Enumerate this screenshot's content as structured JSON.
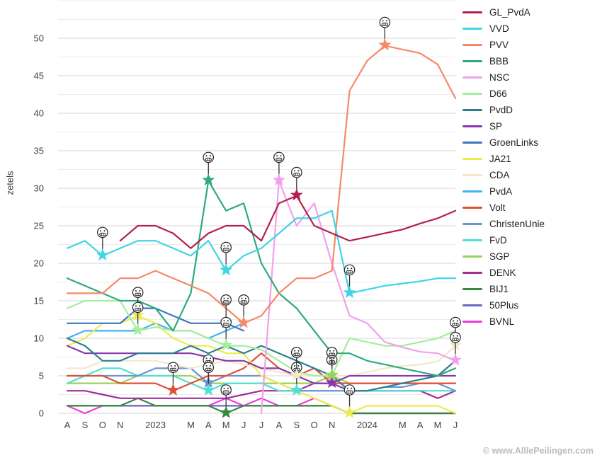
{
  "watermark": "© www.AlllePeilingen.com",
  "chart_data": {
    "type": "line",
    "title": "",
    "xlabel": "",
    "ylabel": "zetels",
    "ylim": [
      0,
      55
    ],
    "yticks": [
      0,
      5,
      10,
      15,
      20,
      25,
      30,
      35,
      40,
      45,
      50
    ],
    "grid": "horizontal major every 5 seats, minor every 2.5 seats",
    "legend_position": "right",
    "x_labels": [
      "A",
      "S",
      "O",
      "N",
      "",
      "2023",
      "",
      "M",
      "A",
      "M",
      "J",
      "J",
      "A",
      "S",
      "O",
      "N",
      "",
      "2024",
      "",
      "M",
      "A",
      "M",
      "J"
    ],
    "series": [
      {
        "name": "GL_PvdA",
        "color": "#b51e50",
        "values": [
          null,
          null,
          null,
          23,
          25,
          25,
          24,
          22,
          24,
          25,
          25,
          23,
          28,
          29,
          25,
          24,
          23,
          23.5,
          24,
          24.5,
          25.3,
          26,
          27
        ]
      },
      {
        "name": "VVD",
        "color": "#3fd5e5",
        "values": [
          22,
          23,
          21,
          22,
          23,
          23,
          22,
          21,
          23,
          19,
          21,
          22,
          24,
          26,
          26,
          27,
          16,
          16.5,
          17,
          17.3,
          17.6,
          18,
          18
        ]
      },
      {
        "name": "PVV",
        "color": "#f58a68",
        "values": [
          16,
          16,
          16,
          18,
          18,
          19,
          18,
          17,
          16,
          14,
          12,
          13,
          16,
          18,
          18,
          19,
          43,
          47,
          49,
          48.5,
          48,
          46.5,
          42
        ]
      },
      {
        "name": "BBB",
        "color": "#2eab78",
        "values": [
          18,
          17,
          16,
          15,
          15,
          14,
          11,
          16,
          31,
          27,
          28,
          20,
          16,
          14,
          11,
          8,
          8,
          7,
          6.5,
          6,
          5.5,
          5,
          6
        ]
      },
      {
        "name": "NSC",
        "color": "#f2a0ec",
        "values": [
          null,
          null,
          null,
          null,
          null,
          null,
          null,
          null,
          null,
          null,
          null,
          0,
          31,
          25,
          28,
          20,
          13,
          12,
          9.5,
          8.8,
          8.2,
          8,
          7
        ]
      },
      {
        "name": "D66",
        "color": "#a5ee9b",
        "values": [
          14,
          15,
          15,
          15,
          11,
          11.5,
          11,
          11,
          10,
          9,
          9,
          8.5,
          7,
          5.5,
          5,
          5,
          10,
          9.5,
          9,
          9,
          9.5,
          10,
          11
        ]
      },
      {
        "name": "PvdD",
        "color": "#2c7f90",
        "values": [
          10,
          9,
          7,
          7,
          8,
          8,
          8,
          9,
          8,
          9,
          8,
          9,
          8,
          7,
          6,
          5,
          3,
          3,
          3.5,
          4,
          4.5,
          5,
          7
        ]
      },
      {
        "name": "SP",
        "color": "#8838ac",
        "values": [
          9,
          8,
          8,
          8,
          8,
          8,
          8,
          8,
          7.5,
          7,
          7,
          6,
          6,
          5,
          4,
          4,
          5,
          5,
          5,
          5,
          5,
          5,
          5
        ]
      },
      {
        "name": "GroenLinks",
        "color": "#3a76c4",
        "values": [
          12,
          12,
          12,
          12,
          14,
          14,
          13,
          12,
          12,
          12,
          11,
          null,
          null,
          null,
          null,
          null,
          null,
          null,
          null,
          null,
          null,
          null,
          null
        ]
      },
      {
        "name": "JA21",
        "color": "#eeeb4e",
        "values": [
          9,
          10,
          12,
          12,
          13,
          12,
          10,
          9,
          9,
          8,
          8,
          5,
          4,
          3,
          2,
          1,
          0,
          1,
          1,
          1,
          1,
          1,
          0
        ]
      },
      {
        "name": "CDA",
        "color": "#f4e8c8",
        "values": [
          6,
          6,
          7,
          7,
          7,
          7,
          6.5,
          6,
          6.5,
          7,
          6.5,
          6,
          5.5,
          5,
          5,
          5,
          5,
          5.5,
          6,
          6.3,
          6.5,
          6.9,
          9
        ]
      },
      {
        "name": "PvdA",
        "color": "#45b2f0",
        "values": [
          10,
          11,
          11,
          11,
          11,
          12,
          11,
          11,
          10,
          11,
          12,
          null,
          null,
          null,
          null,
          null,
          null,
          null,
          null,
          null,
          null,
          null,
          null
        ]
      },
      {
        "name": "Volt",
        "color": "#e05038",
        "values": [
          5,
          5,
          5,
          4,
          4,
          4,
          3,
          4,
          5,
          5,
          6,
          8,
          6,
          5,
          6,
          4,
          4,
          4,
          4,
          4,
          4,
          4,
          4
        ]
      },
      {
        "name": "ChristenUnie",
        "color": "#6a93d8",
        "values": [
          5,
          5,
          5,
          5,
          5,
          6,
          6,
          6,
          4,
          5,
          5,
          5,
          4,
          3,
          3,
          3,
          3,
          3,
          3.5,
          3.5,
          4,
          4,
          3
        ]
      },
      {
        "name": "FvD",
        "color": "#4fe0d2",
        "values": [
          4,
          5,
          6,
          6,
          5,
          5,
          5,
          4,
          3,
          4,
          4,
          4,
          3,
          3,
          3,
          3,
          3,
          3,
          3,
          3,
          3,
          3,
          3
        ]
      },
      {
        "name": "SGP",
        "color": "#9bd25b",
        "values": [
          4,
          4,
          4,
          4,
          5,
          5,
          5,
          5,
          4,
          4,
          4,
          4,
          4,
          4,
          4,
          5,
          4,
          4,
          4,
          4,
          4,
          4,
          4
        ]
      },
      {
        "name": "DENK",
        "color": "#a02d9a",
        "values": [
          3,
          3,
          2.5,
          2,
          2,
          2,
          2,
          2,
          2,
          2,
          2.5,
          3,
          3,
          3,
          4,
          4,
          3,
          3,
          3,
          3,
          3,
          2,
          3
        ]
      },
      {
        "name": "BIJ1",
        "color": "#35893b",
        "values": [
          1,
          1,
          1,
          1,
          2,
          1,
          1,
          1,
          1,
          0,
          1,
          1,
          1,
          1,
          1,
          1,
          0,
          0,
          0,
          0,
          0,
          0,
          0
        ]
      },
      {
        "name": "50Plus",
        "color": "#6a6ac2",
        "values": [
          1,
          1,
          1,
          1,
          1,
          1,
          1,
          1,
          1,
          1,
          1,
          1,
          1,
          1,
          1,
          1,
          0,
          0,
          0,
          0,
          0,
          0,
          0
        ]
      },
      {
        "name": "BVNL",
        "color": "#ee3bdc",
        "values": [
          1,
          0,
          1,
          1,
          1,
          1,
          1,
          1,
          1,
          2,
          1,
          2,
          1,
          1,
          2,
          1,
          0,
          0,
          0,
          0,
          0,
          0,
          0
        ]
      }
    ],
    "markers": [
      {
        "series": "VVD",
        "x": 2,
        "value": 21
      },
      {
        "series": "JA21",
        "x": 4,
        "value": 13
      },
      {
        "series": "D66",
        "x": 4,
        "value": 11
      },
      {
        "series": "Volt",
        "x": 6,
        "value": 3
      },
      {
        "series": "BBB",
        "x": 8,
        "value": 31
      },
      {
        "series": "ChristenUnie",
        "x": 8,
        "value": 4
      },
      {
        "series": "FvD",
        "x": 8,
        "value": 3
      },
      {
        "series": "VVD",
        "x": 9,
        "value": 19
      },
      {
        "series": "GroenLinks",
        "x": 9,
        "value": 12
      },
      {
        "series": "D66",
        "x": 9,
        "value": 9
      },
      {
        "series": "BIJ1",
        "x": 9,
        "value": 0
      },
      {
        "series": "PVV",
        "x": 10,
        "value": 12
      },
      {
        "series": "NSC",
        "x": 12,
        "value": 31
      },
      {
        "series": "GL_PvdA",
        "x": 13,
        "value": 29
      },
      {
        "series": "D66",
        "x": 13,
        "value": 5
      },
      {
        "series": "FvD",
        "x": 13,
        "value": 3
      },
      {
        "series": "CDA",
        "x": 13,
        "value": 5
      },
      {
        "series": "PvdD",
        "x": 15,
        "value": 5
      },
      {
        "series": "SP",
        "x": 15,
        "value": 4
      },
      {
        "series": "SGP",
        "x": 15,
        "value": 5
      },
      {
        "series": "VVD",
        "x": 16,
        "value": 16
      },
      {
        "series": "JA21",
        "x": 16,
        "value": 0
      },
      {
        "series": "PVV",
        "x": 18,
        "value": 49
      },
      {
        "series": "CDA",
        "x": 22,
        "value": 9
      },
      {
        "series": "NSC",
        "x": 22,
        "value": 7
      }
    ]
  }
}
